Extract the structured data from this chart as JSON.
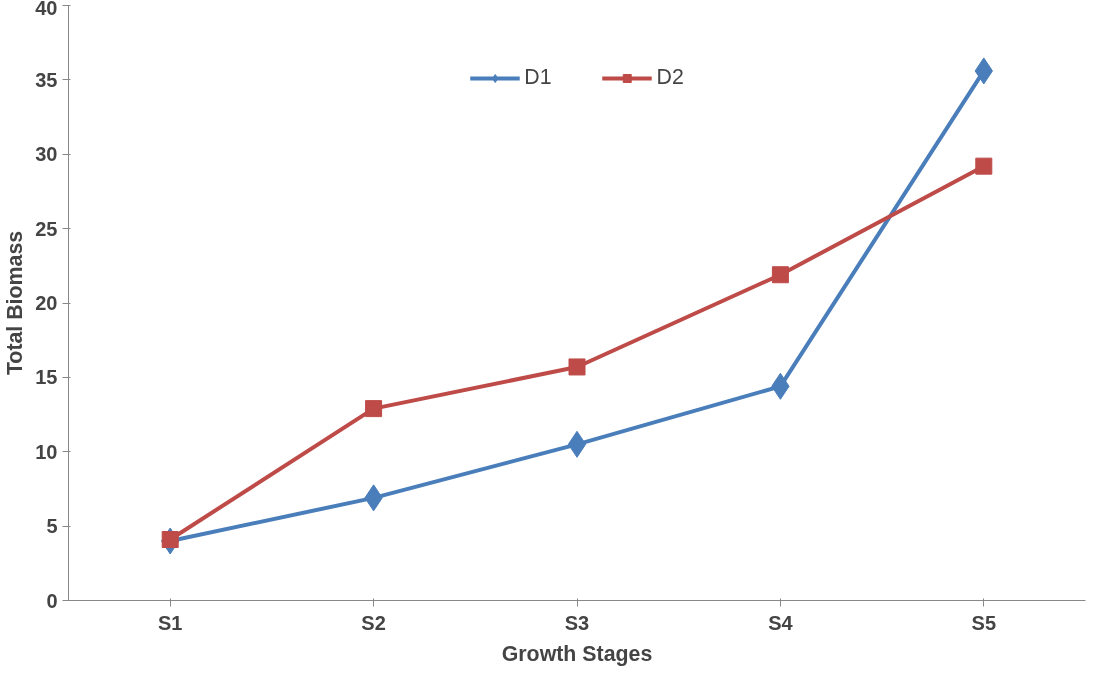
{
  "chart_data": {
    "type": "line",
    "xlabel": "Growth Stages",
    "ylabel": "Total Biomass",
    "categories": [
      "S1",
      "S2",
      "S3",
      "S4",
      "S5"
    ],
    "series": [
      {
        "name": "D1",
        "color": "#4a7ebb",
        "values": [
          4.0,
          6.9,
          10.5,
          14.4,
          35.6
        ],
        "marker": "diamond"
      },
      {
        "name": "D2",
        "color": "#be4b48",
        "values": [
          4.1,
          12.9,
          15.7,
          21.9,
          29.2
        ],
        "marker": "square"
      }
    ],
    "ylim": [
      0,
      40
    ],
    "yticks": [
      0,
      5,
      10,
      15,
      20,
      25,
      30,
      35,
      40
    ],
    "grid": false,
    "legend": "top",
    "line_style": "solid"
  }
}
